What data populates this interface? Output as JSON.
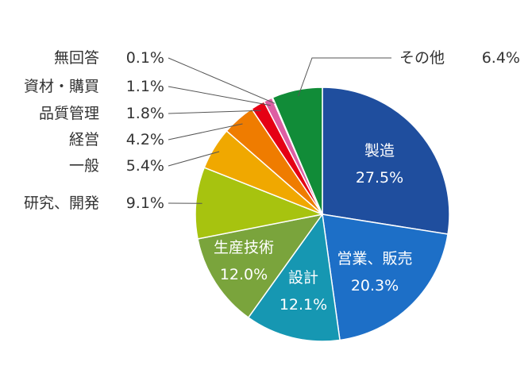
{
  "chart_data": {
    "type": "pie",
    "slices": [
      {
        "label": "製造",
        "value": 27.5,
        "display": "27.5%",
        "color": "#1f4e9e"
      },
      {
        "label": "営業、販売",
        "value": 20.3,
        "display": "20.3%",
        "color": "#1d6fc7"
      },
      {
        "label": "設計",
        "value": 12.1,
        "display": "12.1%",
        "color": "#1697b2"
      },
      {
        "label": "生産技術",
        "value": 12.0,
        "display": "12.0%",
        "color": "#7aa43c"
      },
      {
        "label": "研究、開発",
        "value": 9.1,
        "display": "9.1%",
        "color": "#a7c30f"
      },
      {
        "label": "一般",
        "value": 5.4,
        "display": "5.4%",
        "color": "#f0a800"
      },
      {
        "label": "経営",
        "value": 4.2,
        "display": "4.2%",
        "color": "#ef7c00"
      },
      {
        "label": "品質管理",
        "value": 1.8,
        "display": "1.8%",
        "color": "#e50014"
      },
      {
        "label": "資材・購買",
        "value": 1.1,
        "display": "1.1%",
        "color": "#dd5ea3"
      },
      {
        "label": "無回答",
        "value": 0.1,
        "display": "0.1%",
        "color": "#8fa0c8"
      },
      {
        "label": "その他",
        "value": 6.4,
        "display": "6.4%",
        "color": "#118c38"
      }
    ]
  }
}
